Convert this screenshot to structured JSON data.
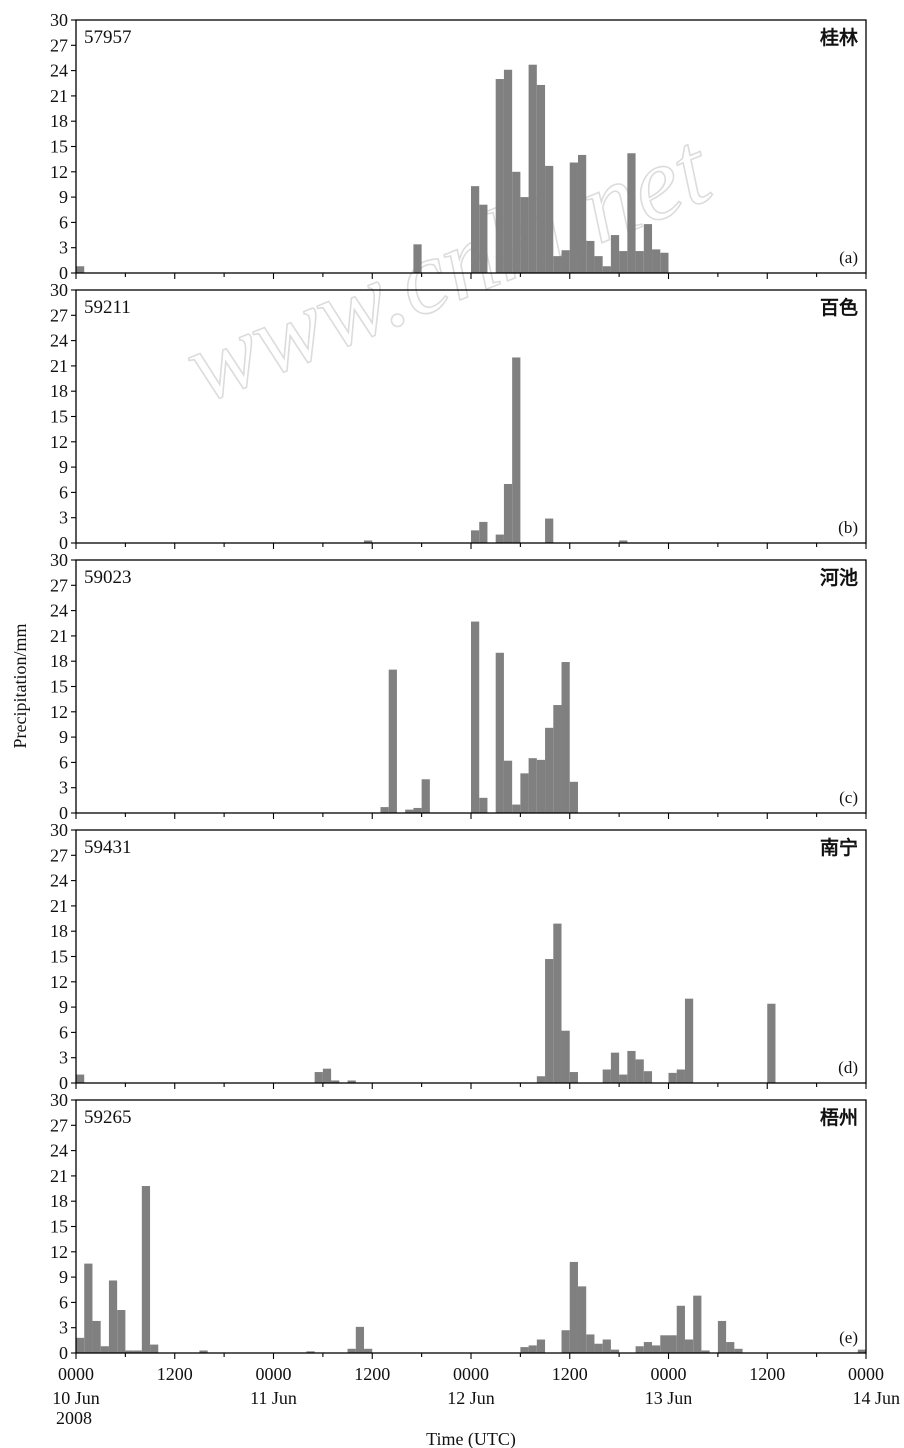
{
  "figure": {
    "ylabel": "Precipitation/mm",
    "xlabel": "Time (UTC)",
    "x_ticks": [
      {
        "hour": 0,
        "label": "0000"
      },
      {
        "hour": 12,
        "label": "1200"
      },
      {
        "hour": 24,
        "label": "0000"
      },
      {
        "hour": 36,
        "label": "1200"
      },
      {
        "hour": 48,
        "label": "0000"
      },
      {
        "hour": 60,
        "label": "1200"
      },
      {
        "hour": 72,
        "label": "0000"
      },
      {
        "hour": 84,
        "label": "1200"
      },
      {
        "hour": 96,
        "label": "0000"
      }
    ],
    "date_labels": [
      {
        "hour": 0,
        "label": "10 Jun"
      },
      {
        "hour": 24,
        "label": "11 Jun"
      },
      {
        "hour": 48,
        "label": "12 Jun"
      },
      {
        "hour": 72,
        "label": "13 Jun"
      },
      {
        "hour": 96,
        "label": "14 Jun"
      }
    ],
    "year_label": "2008",
    "watermark": "www.cnki.net",
    "bar_color": "#808080"
  },
  "chart_data": [
    {
      "type": "bar",
      "panel": "(a)",
      "station_id": "57957",
      "station_name": "桂林",
      "x_unit": "hour since 0000 UTC 10 Jun 2008",
      "xlim": [
        0,
        96
      ],
      "ylim": [
        0,
        30
      ],
      "yticks": [
        0,
        3,
        6,
        9,
        12,
        15,
        18,
        21,
        24,
        27,
        30
      ],
      "x": [
        0,
        41,
        48,
        49,
        51,
        52,
        53,
        54,
        55,
        56,
        57,
        58,
        59,
        60,
        61,
        62,
        63,
        64,
        65,
        66,
        67,
        68,
        69,
        70,
        71
      ],
      "values": [
        0.8,
        3.4,
        10.3,
        8.1,
        23.0,
        24.1,
        12.0,
        9.0,
        24.7,
        22.3,
        12.7,
        2.0,
        2.7,
        13.1,
        14.0,
        3.8,
        2.0,
        0.8,
        4.5,
        2.6,
        14.2,
        2.6,
        5.8,
        2.8,
        2.4
      ],
      "series": [],
      "grid": false
    },
    {
      "type": "bar",
      "panel": "(b)",
      "station_id": "59211",
      "station_name": "百色",
      "x_unit": "hour since 0000 UTC 10 Jun 2008",
      "xlim": [
        0,
        96
      ],
      "ylim": [
        0,
        30
      ],
      "yticks": [
        0,
        3,
        6,
        9,
        12,
        15,
        18,
        21,
        24,
        27,
        30
      ],
      "x": [
        35,
        48,
        49,
        51,
        52,
        53,
        57,
        66
      ],
      "values": [
        0.3,
        1.5,
        2.5,
        1.0,
        7.0,
        22.0,
        2.9,
        0.3
      ],
      "series": [],
      "grid": false
    },
    {
      "type": "bar",
      "panel": "(c)",
      "station_id": "59023",
      "station_name": "河池",
      "x_unit": "hour since 0000 UTC 10 Jun 2008",
      "xlim": [
        0,
        96
      ],
      "ylim": [
        0,
        30
      ],
      "yticks": [
        0,
        3,
        6,
        9,
        12,
        15,
        18,
        21,
        24,
        27,
        30
      ],
      "x": [
        37,
        38,
        40,
        41,
        42,
        48,
        49,
        51,
        52,
        53,
        54,
        55,
        56,
        57,
        58,
        59,
        60
      ],
      "values": [
        0.7,
        17.0,
        0.4,
        0.6,
        4.0,
        22.7,
        1.8,
        19.0,
        6.2,
        1.0,
        4.7,
        6.5,
        6.3,
        10.1,
        12.8,
        17.9,
        3.7
      ],
      "series": [],
      "grid": false
    },
    {
      "type": "bar",
      "panel": "(d)",
      "station_id": "59431",
      "station_name": "南宁",
      "x_unit": "hour since 0000 UTC 10 Jun 2008",
      "xlim": [
        0,
        96
      ],
      "ylim": [
        0,
        30
      ],
      "yticks": [
        0,
        3,
        6,
        9,
        12,
        15,
        18,
        21,
        24,
        27,
        30
      ],
      "x": [
        0,
        29,
        30,
        31,
        33,
        56,
        57,
        58,
        59,
        60,
        64,
        65,
        66,
        67,
        68,
        69,
        72,
        73,
        74,
        84
      ],
      "values": [
        1.0,
        1.3,
        1.7,
        0.3,
        0.3,
        0.8,
        14.7,
        18.9,
        6.2,
        1.3,
        1.6,
        3.6,
        1.0,
        3.8,
        2.8,
        1.4,
        1.2,
        1.6,
        10.0,
        9.4
      ],
      "series": [],
      "grid": false
    },
    {
      "type": "bar",
      "panel": "(e)",
      "station_id": "59265",
      "station_name": "梧州",
      "x_unit": "hour since 0000 UTC 10 Jun 2008",
      "xlim": [
        0,
        96
      ],
      "ylim": [
        0,
        30
      ],
      "yticks": [
        0,
        3,
        6,
        9,
        12,
        15,
        18,
        21,
        24,
        27,
        30
      ],
      "x": [
        0,
        1,
        2,
        3,
        4,
        5,
        6,
        7,
        8,
        9,
        15,
        28,
        33,
        34,
        35,
        54,
        55,
        56,
        59,
        60,
        61,
        62,
        63,
        64,
        65,
        68,
        69,
        70,
        71,
        72,
        73,
        74,
        75,
        76,
        78,
        79,
        80,
        95
      ],
      "values": [
        1.8,
        10.6,
        3.8,
        0.8,
        8.6,
        5.1,
        0.3,
        0.3,
        19.8,
        1.0,
        0.3,
        0.2,
        0.5,
        3.1,
        0.5,
        0.7,
        0.9,
        1.6,
        2.7,
        10.8,
        7.9,
        2.2,
        1.1,
        1.6,
        0.4,
        0.8,
        1.3,
        0.9,
        2.1,
        2.1,
        5.6,
        1.6,
        6.8,
        0.3,
        3.8,
        1.3,
        0.5,
        0.4
      ],
      "series": [],
      "grid": false
    }
  ]
}
